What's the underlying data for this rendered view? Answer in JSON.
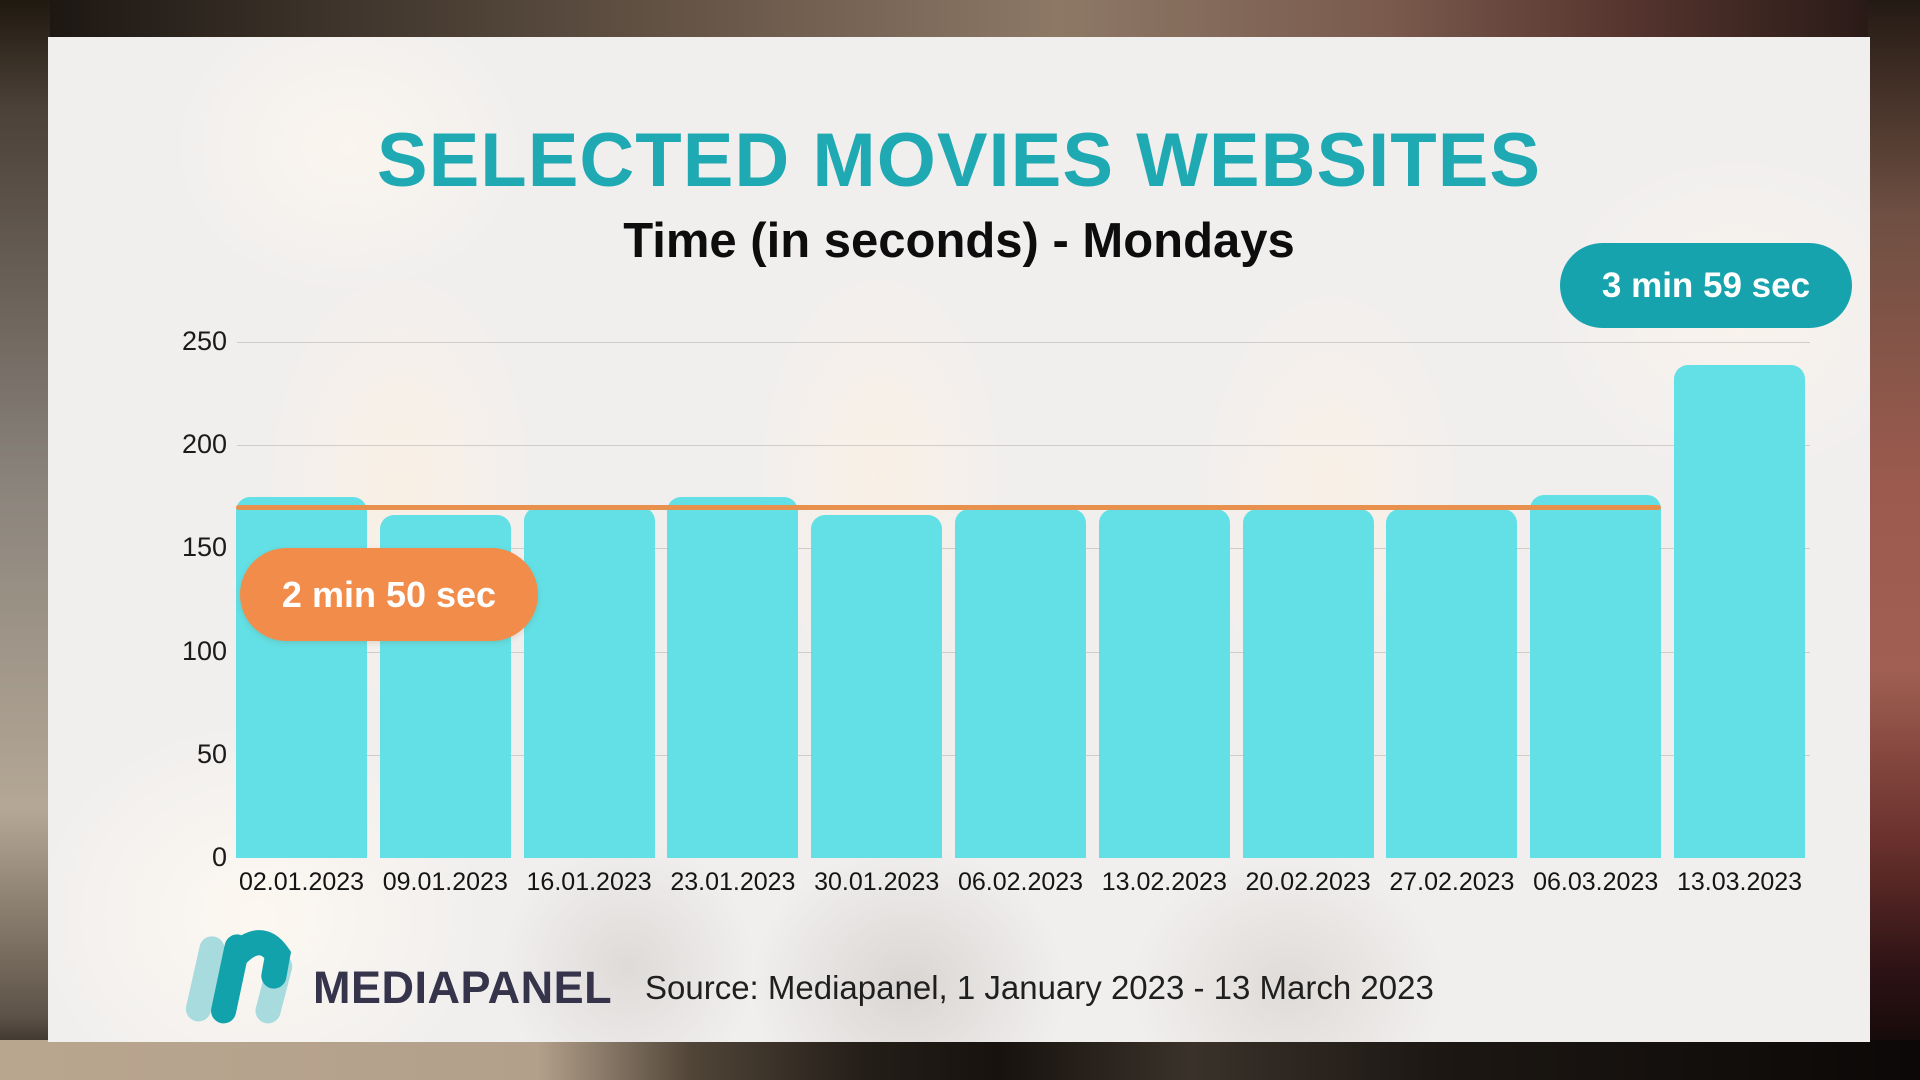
{
  "page": {
    "title": "SELECTED MOVIES WEBSITES",
    "subtitle": "Time (in seconds) - Mondays"
  },
  "badges": {
    "max_label": "3 min 59 sec",
    "avg_label": "2 min 50 sec"
  },
  "chart_data": {
    "type": "bar",
    "title": "SELECTED MOVIES WEBSITES",
    "subtitle": "Time (in seconds) - Mondays",
    "categories": [
      "02.01.2023",
      "09.01.2023",
      "16.01.2023",
      "23.01.2023",
      "30.01.2023",
      "06.02.2023",
      "13.02.2023",
      "20.02.2023",
      "27.02.2023",
      "06.03.2023",
      "13.03.2023"
    ],
    "values": [
      175,
      166,
      170,
      175,
      166,
      169,
      169,
      169,
      169,
      176,
      239
    ],
    "xlabel": "",
    "ylabel": "",
    "ylim": [
      0,
      250
    ],
    "yticks": [
      0,
      50,
      100,
      150,
      200,
      250
    ],
    "grid": true,
    "legend": "none",
    "bar_color": "#63e0e5",
    "average_line": {
      "value": 170,
      "label": "2 min 50 sec",
      "color": "#e8914e",
      "covers_categories": "02.01.2023 - 06.03.2023"
    },
    "annotations": [
      {
        "label": "3 min 59 sec",
        "category": "13.03.2023",
        "value_seconds": 239,
        "color": "#17a3ae"
      },
      {
        "label": "2 min 50 sec",
        "value_seconds": 170,
        "color": "#f28c4a"
      }
    ]
  },
  "footer": {
    "brand": "MEDIAPANEL",
    "source": "Source: Mediapanel, 1 January 2023 - 13 March 2023"
  },
  "colors": {
    "title_teal": "#1faab3",
    "bar_cyan": "#63e0e5",
    "badge_teal": "#17a3ae",
    "badge_orange": "#f28c4a",
    "avg_line_orange": "#e8914e",
    "card_background": "#f1efee",
    "brand_navy": "#35344b"
  }
}
